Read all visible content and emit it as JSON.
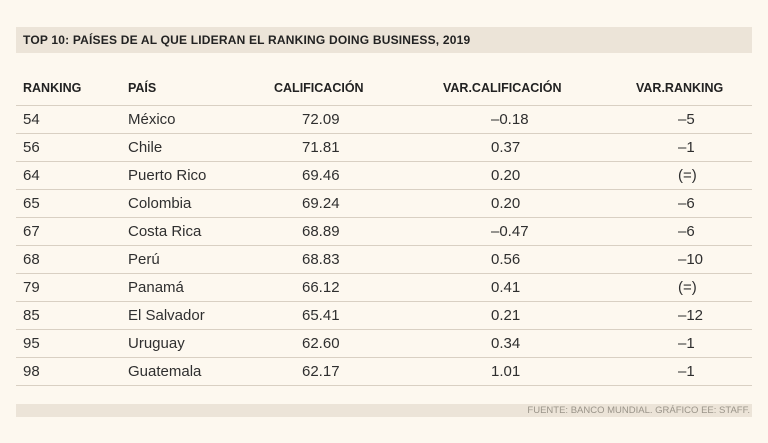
{
  "title": "TOP 10: PAÍSES DE AL QUE LIDERAN EL RANKING DOING BUSINESS, 2019",
  "columns": {
    "ranking": "RANKING",
    "pais": "PAÍS",
    "calificacion": "CALIFICACIÓN",
    "var_calificacion": "VAR.CALIFICACIÓN",
    "var_ranking": "VAR.RANKING"
  },
  "rows": [
    {
      "ranking": "54",
      "pais": "México",
      "calificacion": "72.09",
      "var_calificacion": "–0.18",
      "var_ranking": "–5"
    },
    {
      "ranking": "56",
      "pais": "Chile",
      "calificacion": "71.81",
      "var_calificacion": "0.37",
      "var_ranking": "–1"
    },
    {
      "ranking": "64",
      "pais": "Puerto Rico",
      "calificacion": "69.46",
      "var_calificacion": "0.20",
      "var_ranking": "(=)"
    },
    {
      "ranking": "65",
      "pais": "Colombia",
      "calificacion": "69.24",
      "var_calificacion": "0.20",
      "var_ranking": "–6"
    },
    {
      "ranking": "67",
      "pais": "Costa Rica",
      "calificacion": "68.89",
      "var_calificacion": "–0.47",
      "var_ranking": "–6"
    },
    {
      "ranking": "68",
      "pais": "Perú",
      "calificacion": "68.83",
      "var_calificacion": "0.56",
      "var_ranking": "–10"
    },
    {
      "ranking": "79",
      "pais": "Panamá",
      "calificacion": "66.12",
      "var_calificacion": "0.41",
      "var_ranking": "(=)"
    },
    {
      "ranking": "85",
      "pais": "El Salvador",
      "calificacion": "65.41",
      "var_calificacion": "0.21",
      "var_ranking": "–12"
    },
    {
      "ranking": "95",
      "pais": "Uruguay",
      "calificacion": "62.60",
      "var_calificacion": "0.34",
      "var_ranking": "–1"
    },
    {
      "ranking": "98",
      "pais": "Guatemala",
      "calificacion": "62.17",
      "var_calificacion": "1.01",
      "var_ranking": "–1"
    }
  ],
  "source": "FUENTE: BANCO MUNDIAL. GRÁFICO EE: STAFF."
}
